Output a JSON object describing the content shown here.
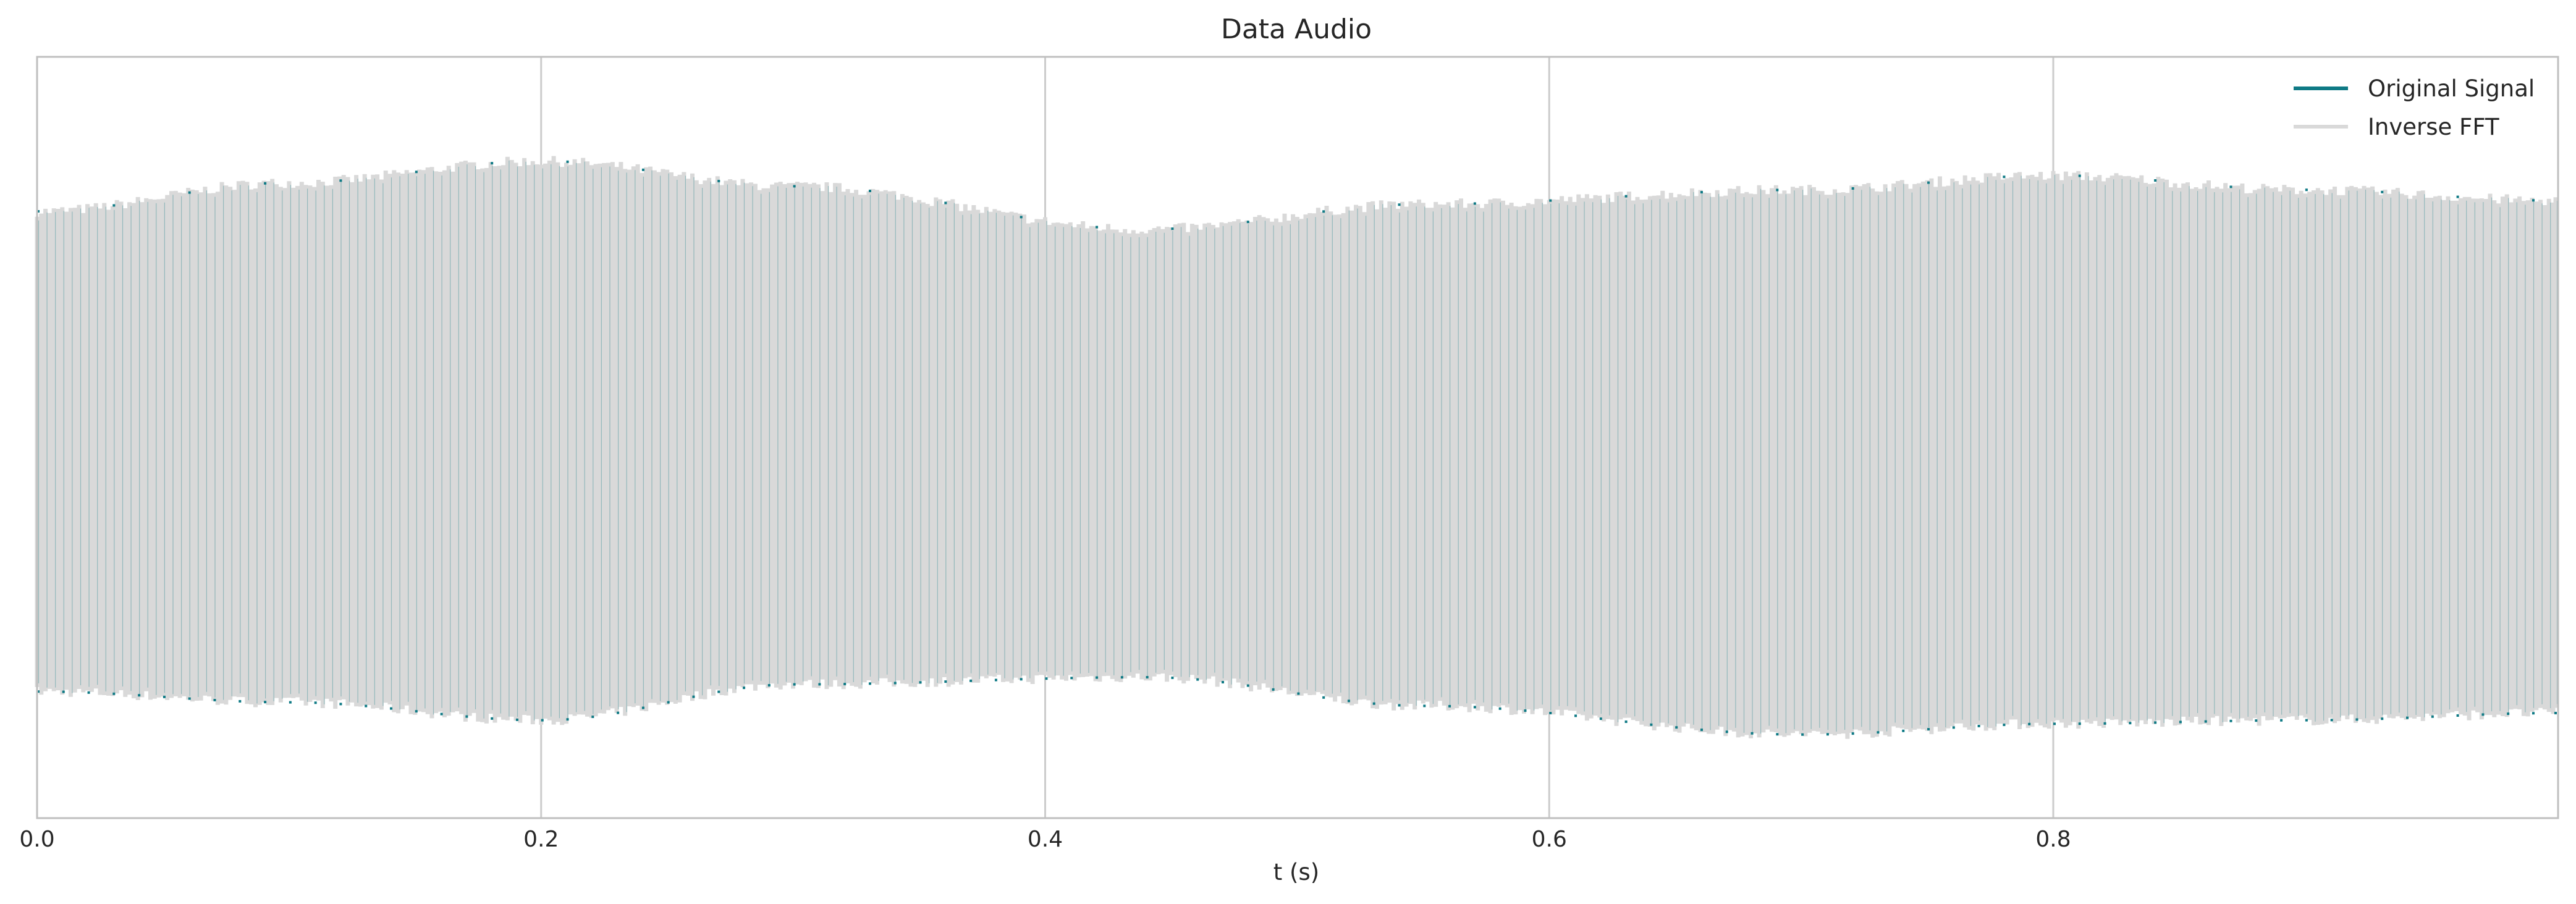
{
  "colors": {
    "original_signal": "#0f7a85",
    "inverse_fft": "#d9d9d9",
    "grid": "#cccccc",
    "frame": "#bfbfbf",
    "background": "#ffffff"
  },
  "chart_data": {
    "type": "line",
    "title": "Data Audio",
    "xlabel": "t (s)",
    "ylabel": "",
    "xlim": [
      0.0,
      1.0
    ],
    "ylim": [
      -1.0,
      1.0
    ],
    "grid": true,
    "y_ticks_shown": false,
    "legend_position": "top-right",
    "x_ticks": [
      {
        "value": 0.0,
        "label": "0.0"
      },
      {
        "value": 0.2,
        "label": "0.2"
      },
      {
        "value": 0.4,
        "label": "0.4"
      },
      {
        "value": 0.6,
        "label": "0.6"
      },
      {
        "value": 0.8,
        "label": "0.8"
      }
    ],
    "series": [
      {
        "name": "Original Signal",
        "color": "#0f7a85"
      },
      {
        "name": "Inverse FFT",
        "color": "#d9d9d9"
      }
    ],
    "oscillation_cycles": 300,
    "upper_envelope": {
      "t": [
        0.0,
        0.1,
        0.2,
        0.3,
        0.44,
        0.55,
        0.7,
        0.8,
        0.9,
        1.0
      ],
      "y": [
        0.6,
        0.68,
        0.74,
        0.67,
        0.55,
        0.62,
        0.66,
        0.7,
        0.66,
        0.63
      ]
    },
    "lower_envelope": {
      "t": [
        0.0,
        0.1,
        0.2,
        0.3,
        0.44,
        0.55,
        0.7,
        0.8,
        0.9,
        1.0
      ],
      "y": [
        -0.74,
        -0.77,
        -0.82,
        -0.72,
        -0.7,
        -0.78,
        -0.86,
        -0.83,
        -0.82,
        -0.8
      ]
    },
    "dense_band": {
      "y": [
        -0.15,
        0.15
      ]
    }
  }
}
